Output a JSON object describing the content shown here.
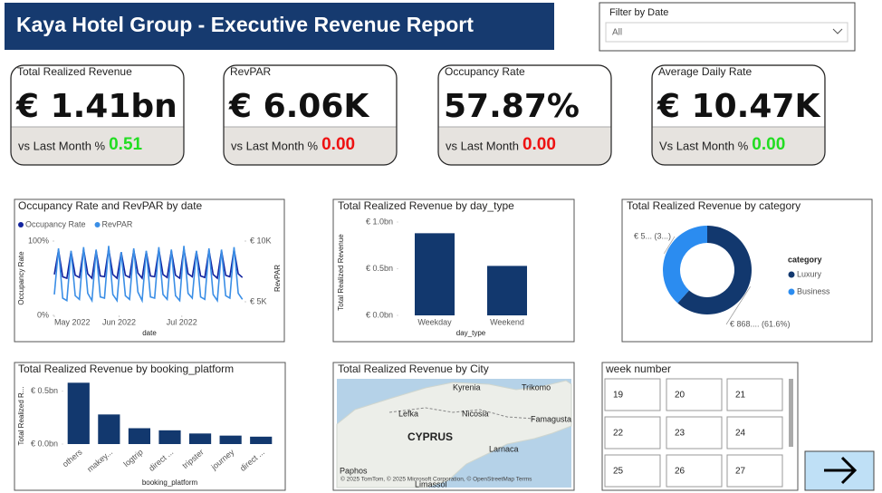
{
  "header": {
    "title": "Kaya Hotel Group - Executive Revenue Report"
  },
  "filter": {
    "label": "Filter by Date",
    "value": "All"
  },
  "kpis": [
    {
      "title": "Total Realized Revenue",
      "value": "€ 1.41bn",
      "compare_label": "vs Last Month %",
      "compare_value": "0.51",
      "compare_color": "#22dd22"
    },
    {
      "title": "RevPAR",
      "value": "€ 6.06K",
      "compare_label": "vs Last Month %",
      "compare_value": "0.00",
      "compare_color": "#ee1111"
    },
    {
      "title": "Occupancy Rate",
      "value": "57.87%",
      "compare_label": "vs Last Month",
      "compare_value": "0.00",
      "compare_color": "#ee1111"
    },
    {
      "title": "Average Daily Rate",
      "value": "€ 10.47K",
      "compare_label": "Vs Last Month %",
      "compare_value": "0.00",
      "compare_color": "#22dd22"
    }
  ],
  "chart_data": [
    {
      "type": "line",
      "title": "Occupancy Rate and RevPAR by date",
      "x_label": "date",
      "y_label": "Occupancy Rate",
      "y2_label": "RevPAR",
      "x": [
        0,
        2,
        4,
        6,
        8,
        10,
        12,
        14,
        16,
        18,
        20,
        22,
        24,
        26,
        28,
        30,
        32,
        34,
        36,
        38,
        40,
        42,
        44,
        46,
        48,
        50,
        52,
        54,
        56,
        58,
        60,
        62,
        64,
        66,
        68,
        70,
        72,
        74,
        76,
        78,
        80,
        82,
        84,
        86,
        88,
        90
      ],
      "xlim": [
        0,
        91
      ],
      "xticks": [
        {
          "value": 0,
          "label": "May 2022"
        },
        {
          "value": 31,
          "label": "Jun 2022"
        },
        {
          "value": 61,
          "label": "Jul 2022"
        }
      ],
      "ylim": [
        0,
        100
      ],
      "yticks": [
        {
          "value": 0,
          "label": "0%"
        },
        {
          "value": 100,
          "label": "100%"
        }
      ],
      "y2lim": [
        3880,
        10000
      ],
      "y2ticks": [
        {
          "value": 5000,
          "label": "€ 5K"
        },
        {
          "value": 10000,
          "label": "€ 10K"
        }
      ],
      "series": [
        {
          "name": "Occupancy Rate",
          "color": "#12239e",
          "values": [
            55,
            88,
            52,
            50,
            86,
            54,
            51,
            89,
            56,
            50,
            87,
            53,
            52,
            90,
            55,
            50,
            85,
            54,
            51,
            88,
            57,
            50,
            86,
            53,
            52,
            89,
            55,
            51,
            87,
            54,
            50,
            90,
            56,
            52,
            86,
            53,
            51,
            88,
            55,
            50,
            87,
            54,
            52,
            89,
            56,
            51
          ]
        },
        {
          "name": "RevPAR",
          "color": "#3a8ee6",
          "axis": "y2",
          "values": [
            5600,
            9400,
            5300,
            5100,
            9200,
            5500,
            5200,
            9500,
            5700,
            5100,
            9300,
            5400,
            5300,
            9600,
            5600,
            5100,
            9100,
            5500,
            5200,
            9400,
            5800,
            5100,
            9200,
            5400,
            5300,
            9500,
            5600,
            5200,
            9300,
            5500,
            5100,
            9600,
            5700,
            5300,
            9200,
            5400,
            5200,
            9400,
            5600,
            5100,
            9300,
            5500,
            5300,
            9500,
            5700,
            5200
          ]
        }
      ]
    },
    {
      "type": "bar",
      "title": "Total Realized Revenue by day_type",
      "x_label": "day_type",
      "y_label": "Total Realized Revenue",
      "categories": [
        "Weekday",
        "Weekend"
      ],
      "values": [
        0.88,
        0.53
      ],
      "color": "#12386e",
      "ylim": [
        0,
        1.0
      ],
      "yticks": [
        {
          "value": 0,
          "label": "€ 0.0bn"
        },
        {
          "value": 0.5,
          "label": "€ 0.5bn"
        },
        {
          "value": 1.0,
          "label": "€ 1.0bn"
        }
      ]
    },
    {
      "type": "pie",
      "title": "Total Realized Revenue by category",
      "legend_title": "category",
      "categories": [
        "Luxury",
        "Business"
      ],
      "values": [
        61.6,
        38.4
      ],
      "value_labels": [
        "€ 868.... (61.6%)",
        "€ 5... (3...)"
      ],
      "colors": [
        "#12386e",
        "#2b8cf0"
      ]
    },
    {
      "type": "bar",
      "title": "Total Realized Revenue by booking_platform",
      "x_label": "booking_platform",
      "y_label": "Total Realized R...",
      "categories": [
        "others",
        "makey...",
        "logtrip",
        "direct ...",
        "tripster",
        "journey",
        "direct ..."
      ],
      "values": [
        0.58,
        0.28,
        0.15,
        0.13,
        0.1,
        0.08,
        0.07
      ],
      "color": "#12386e",
      "ylim": [
        0,
        0.6
      ],
      "yticks": [
        {
          "value": 0,
          "label": "€ 0.0bn"
        },
        {
          "value": 0.5,
          "label": "€ 0.5bn"
        }
      ]
    }
  ],
  "map": {
    "title": "Total Realized Revenue by City",
    "labels": [
      "Kyrenia",
      "Trikomo",
      "Lefka",
      "Nicosia",
      "Famagusta",
      "CYPRUS",
      "Larnaca",
      "Paphos",
      "Limassol"
    ],
    "credits": "© 2025 TomTom, © 2025 Microsoft Corporation, © OpenStreetMap  Terms"
  },
  "week_slicer": {
    "title": "week number",
    "options": [
      "19",
      "20",
      "21",
      "22",
      "23",
      "24",
      "25",
      "26",
      "27"
    ]
  }
}
